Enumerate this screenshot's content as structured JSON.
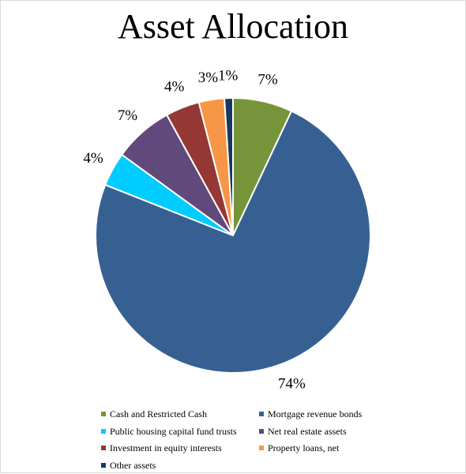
{
  "chart_data": {
    "type": "pie",
    "title": "Asset Allocation",
    "slices": [
      {
        "label": "Cash and Restricted Cash",
        "value": 7,
        "display": "7%",
        "color": "#76953a"
      },
      {
        "label": "Mortgage revenue bonds",
        "value": 74,
        "display": "74%",
        "color": "#366092"
      },
      {
        "label": "Public housing capital fund trusts",
        "value": 4,
        "display": "4%",
        "color": "#00ccff"
      },
      {
        "label": "Net real estate assets",
        "value": 7,
        "display": "7%",
        "color": "#604a7b"
      },
      {
        "label": "Investment in equity interests",
        "value": 4,
        "display": "4%",
        "color": "#953735"
      },
      {
        "label": "Property loans, net",
        "value": 3,
        "display": "3%",
        "color": "#f79646"
      },
      {
        "label": "Other assets",
        "value": 1,
        "display": "1%",
        "color": "#17375e"
      }
    ],
    "legend_position": "bottom"
  }
}
